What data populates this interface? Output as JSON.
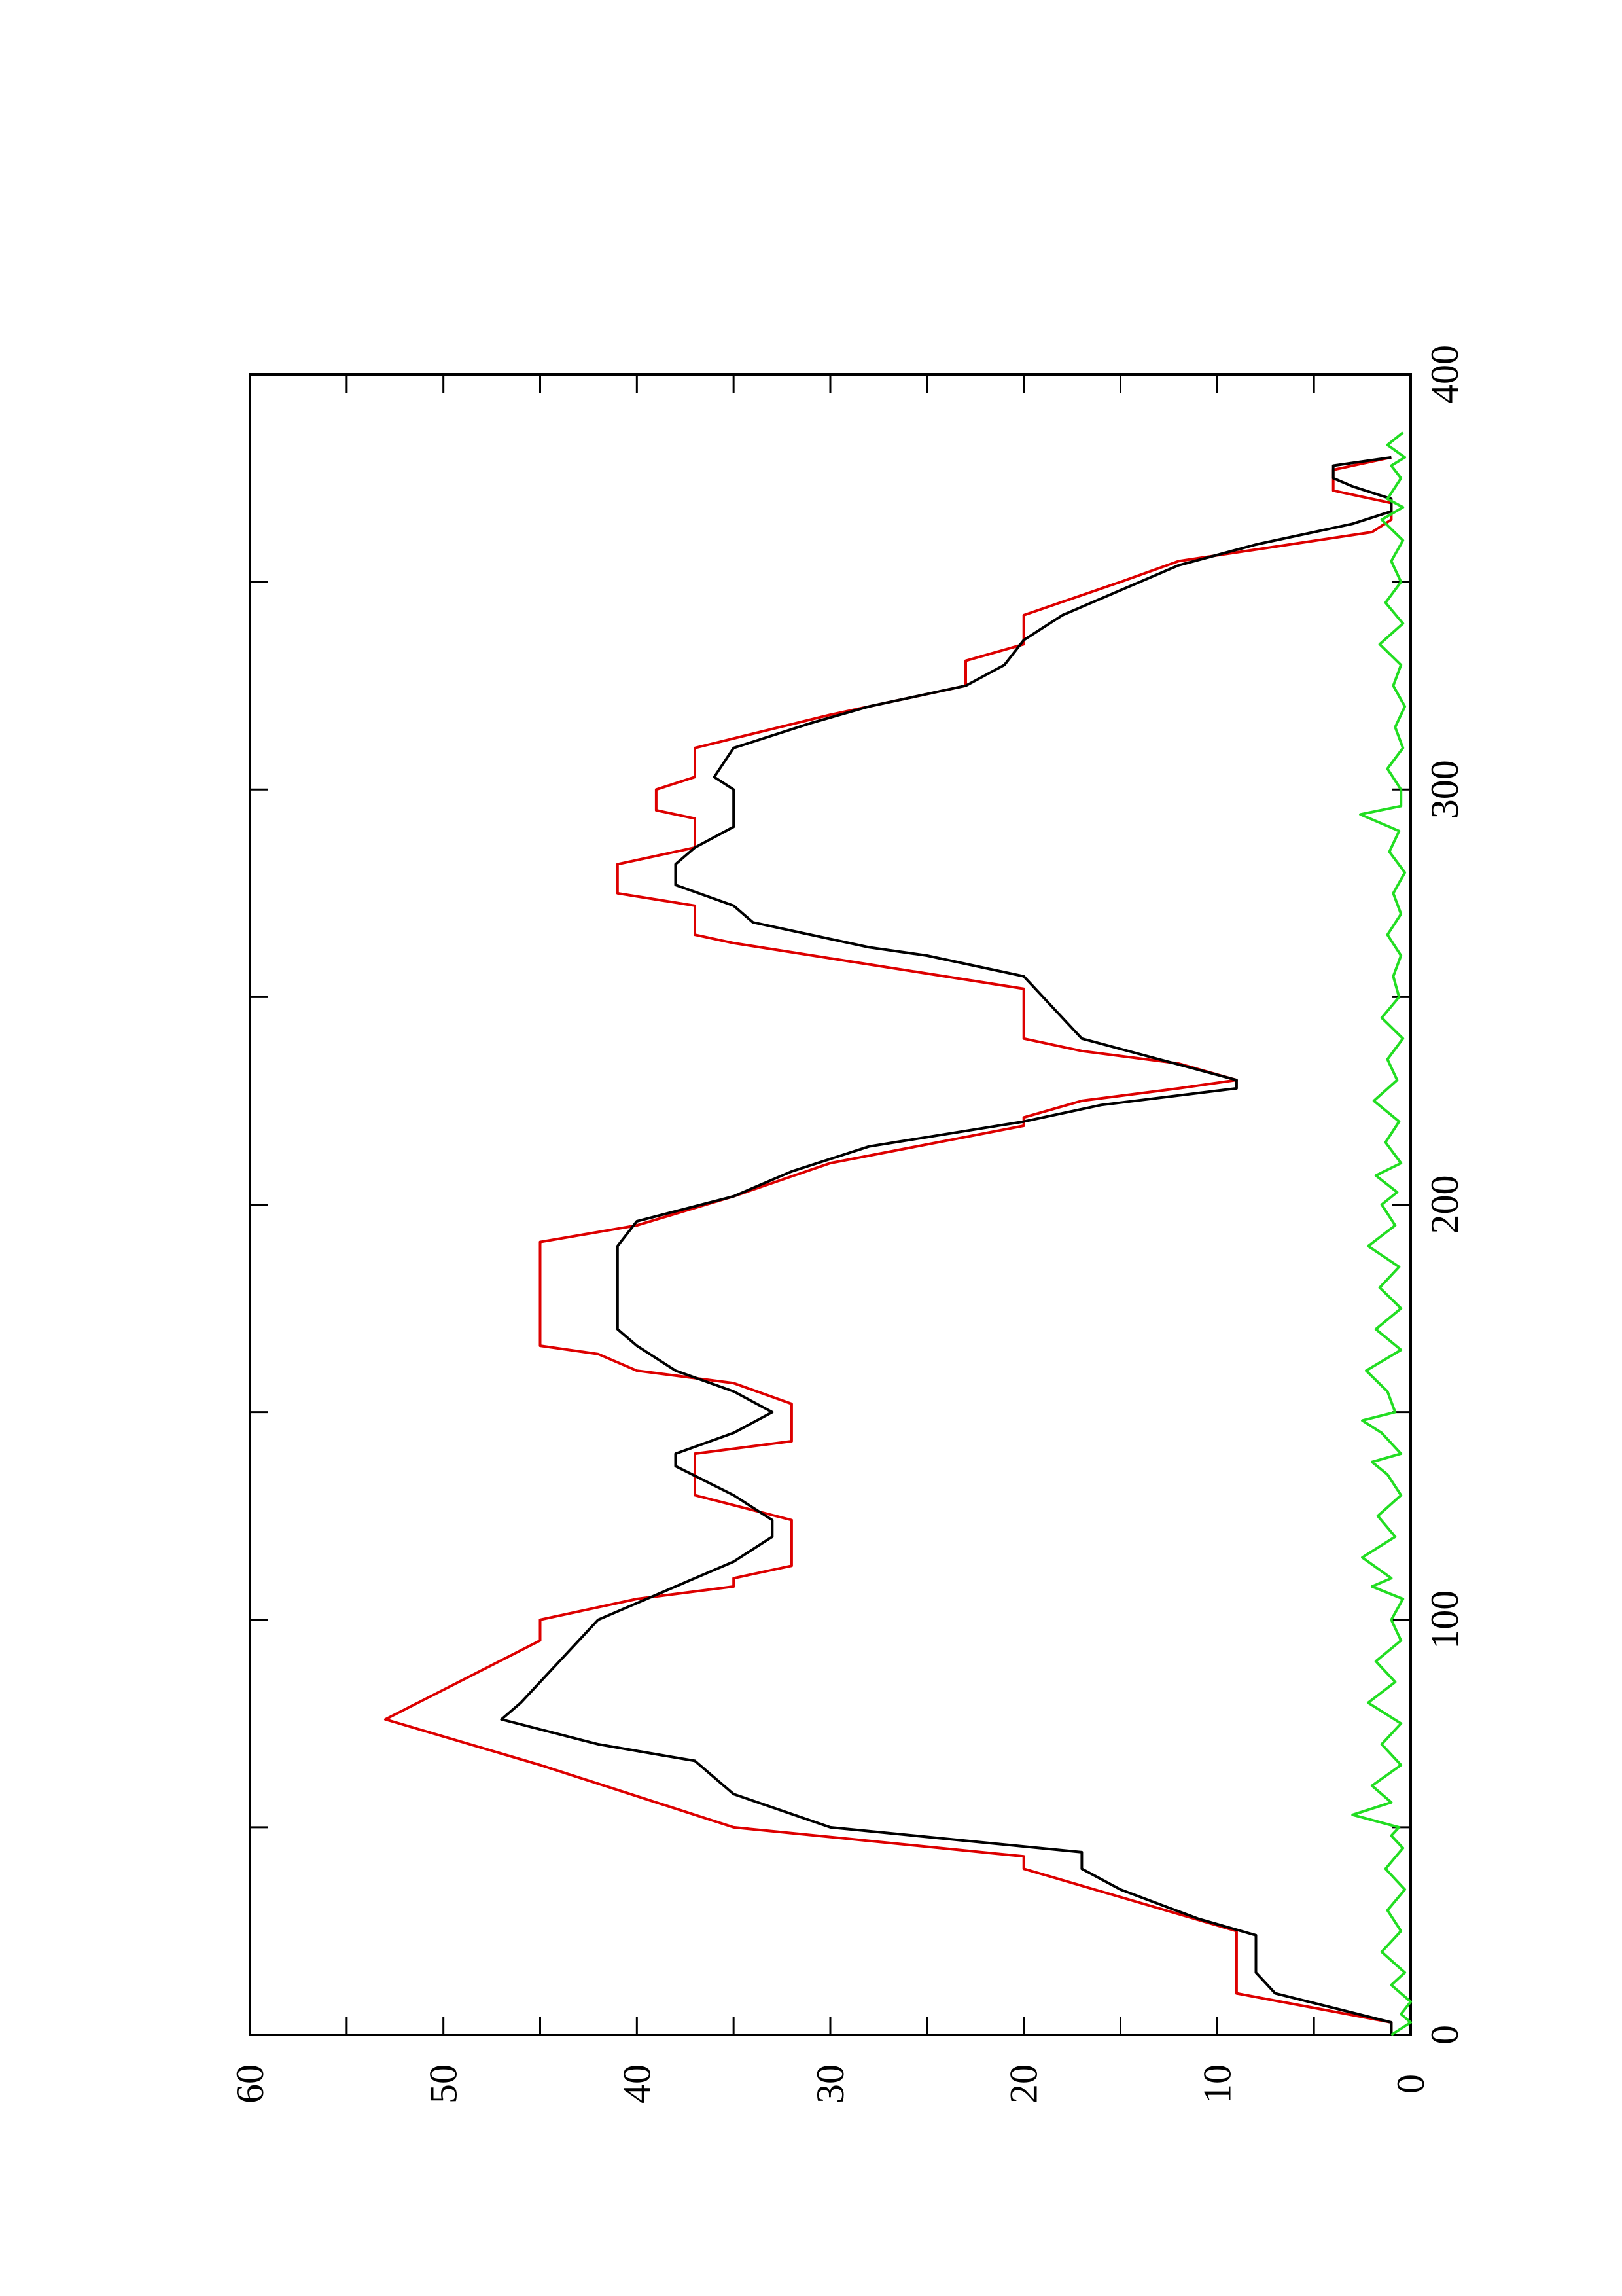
{
  "chart_data": {
    "type": "line",
    "orientation": "rotated 90 degrees counter-clockwise (x axis runs bottom-to-top on the page, y axis runs right-to-left)",
    "title": "",
    "xlabel": "",
    "ylabel": "",
    "xlim": [
      0,
      400
    ],
    "ylim": [
      0,
      60
    ],
    "x_ticks": [
      "0",
      "100",
      "200",
      "300",
      "400"
    ],
    "y_ticks": [
      "0",
      "10",
      "20",
      "30",
      "40",
      "50",
      "60"
    ],
    "grid": false,
    "legend": "none",
    "series": [
      {
        "color": "#dd0000",
        "style": "step",
        "points": [
          [
            0,
            1
          ],
          [
            3,
            1
          ],
          [
            10,
            9
          ],
          [
            25,
            9
          ],
          [
            40,
            20
          ],
          [
            43,
            20
          ],
          [
            50,
            35
          ],
          [
            65,
            45
          ],
          [
            76,
            53
          ],
          [
            95,
            45
          ],
          [
            100,
            45
          ],
          [
            105,
            40
          ],
          [
            108,
            35
          ],
          [
            110,
            35
          ],
          [
            113,
            32
          ],
          [
            124,
            32
          ],
          [
            130,
            37
          ],
          [
            140,
            37
          ],
          [
            143,
            32
          ],
          [
            152,
            32
          ],
          [
            157,
            35
          ],
          [
            160,
            40
          ],
          [
            164,
            42
          ],
          [
            166,
            45
          ],
          [
            171,
            45
          ],
          [
            191,
            45
          ],
          [
            195,
            40
          ],
          [
            202,
            35
          ],
          [
            210,
            30
          ],
          [
            219,
            20
          ],
          [
            221,
            20
          ],
          [
            225,
            17
          ],
          [
            228,
            12
          ],
          [
            230,
            9
          ],
          [
            234,
            12
          ],
          [
            237,
            17
          ],
          [
            240,
            20
          ],
          [
            246,
            20
          ],
          [
            252,
            20
          ],
          [
            263,
            35
          ],
          [
            265,
            37
          ],
          [
            272,
            37
          ],
          [
            275,
            41
          ],
          [
            282,
            41
          ],
          [
            286,
            37
          ],
          [
            293,
            37
          ],
          [
            295,
            39
          ],
          [
            300,
            39
          ],
          [
            303,
            37
          ],
          [
            310,
            37
          ],
          [
            318,
            30
          ],
          [
            325,
            23
          ],
          [
            331,
            23
          ],
          [
            335,
            20
          ],
          [
            342,
            20
          ],
          [
            350,
            15
          ],
          [
            355,
            12
          ],
          [
            362,
            2
          ],
          [
            365,
            1
          ],
          [
            369,
            1
          ],
          [
            372,
            4
          ],
          [
            377,
            4
          ],
          [
            380,
            1
          ]
        ]
      },
      {
        "color": "#000000",
        "style": "line",
        "points": [
          [
            0,
            1
          ],
          [
            3,
            1
          ],
          [
            10,
            7
          ],
          [
            15,
            8
          ],
          [
            24,
            8
          ],
          [
            28,
            11
          ],
          [
            35,
            15
          ],
          [
            40,
            17
          ],
          [
            44,
            17
          ],
          [
            50,
            30
          ],
          [
            58,
            35
          ],
          [
            66,
            37
          ],
          [
            70,
            42
          ],
          [
            76,
            47
          ],
          [
            80,
            46
          ],
          [
            85,
            45
          ],
          [
            95,
            43
          ],
          [
            100,
            42
          ],
          [
            104,
            40
          ],
          [
            108,
            38
          ],
          [
            110,
            37
          ],
          [
            114,
            35
          ],
          [
            120,
            33
          ],
          [
            124,
            33
          ],
          [
            130,
            35
          ],
          [
            137,
            38
          ],
          [
            140,
            38
          ],
          [
            145,
            35
          ],
          [
            150,
            33
          ],
          [
            155,
            35
          ],
          [
            160,
            38
          ],
          [
            166,
            40
          ],
          [
            170,
            41
          ],
          [
            178,
            41
          ],
          [
            185,
            41
          ],
          [
            190,
            41
          ],
          [
            196,
            40
          ],
          [
            202,
            35
          ],
          [
            208,
            32
          ],
          [
            214,
            28
          ],
          [
            220,
            20
          ],
          [
            224,
            16
          ],
          [
            228,
            9
          ],
          [
            230,
            9
          ],
          [
            235,
            13
          ],
          [
            240,
            17
          ],
          [
            245,
            18
          ],
          [
            250,
            19
          ],
          [
            255,
            20
          ],
          [
            260,
            25
          ],
          [
            262,
            28
          ],
          [
            268,
            34
          ],
          [
            272,
            35
          ],
          [
            277,
            38
          ],
          [
            282,
            38
          ],
          [
            286,
            37
          ],
          [
            291,
            35
          ],
          [
            300,
            35
          ],
          [
            303,
            36
          ],
          [
            310,
            35
          ],
          [
            316,
            31
          ],
          [
            320,
            28
          ],
          [
            325,
            23
          ],
          [
            330,
            21
          ],
          [
            336,
            20
          ],
          [
            342,
            18
          ],
          [
            350,
            14
          ],
          [
            354,
            12
          ],
          [
            359,
            8
          ],
          [
            364,
            3
          ],
          [
            367,
            1
          ],
          [
            370,
            1
          ],
          [
            373,
            3
          ],
          [
            375,
            4
          ],
          [
            378,
            4
          ],
          [
            380,
            1
          ]
        ]
      },
      {
        "color": "#22dd22",
        "style": "noise",
        "points": [
          [
            0,
            1
          ],
          [
            3,
            0
          ],
          [
            5,
            0.5
          ],
          [
            8,
            0
          ],
          [
            12,
            1
          ],
          [
            15,
            0.3
          ],
          [
            20,
            1.5
          ],
          [
            25,
            0.5
          ],
          [
            30,
            1.2
          ],
          [
            35,
            0.3
          ],
          [
            40,
            1.3
          ],
          [
            45,
            0.4
          ],
          [
            48,
            1
          ],
          [
            50,
            0.6
          ],
          [
            53,
            3
          ],
          [
            56,
            1
          ],
          [
            60,
            2
          ],
          [
            65,
            0.5
          ],
          [
            70,
            1.5
          ],
          [
            75,
            0.5
          ],
          [
            80,
            2.2
          ],
          [
            85,
            0.8
          ],
          [
            90,
            1.8
          ],
          [
            95,
            0.5
          ],
          [
            100,
            1
          ],
          [
            105,
            0.4
          ],
          [
            108,
            2
          ],
          [
            110,
            1
          ],
          [
            115,
            2.5
          ],
          [
            120,
            0.8
          ],
          [
            125,
            1.7
          ],
          [
            130,
            0.5
          ],
          [
            135,
            1.2
          ],
          [
            138,
            2
          ],
          [
            140,
            0.5
          ],
          [
            145,
            1.5
          ],
          [
            148,
            2.5
          ],
          [
            150,
            0.8
          ],
          [
            155,
            1.2
          ],
          [
            160,
            2.3
          ],
          [
            165,
            0.5
          ],
          [
            170,
            1.8
          ],
          [
            175,
            0.5
          ],
          [
            180,
            1.6
          ],
          [
            185,
            0.6
          ],
          [
            190,
            2.2
          ],
          [
            195,
            0.8
          ],
          [
            200,
            1.5
          ],
          [
            203,
            0.7
          ],
          [
            207,
            1.8
          ],
          [
            210,
            0.5
          ],
          [
            215,
            1.3
          ],
          [
            220,
            0.6
          ],
          [
            225,
            1.9
          ],
          [
            230,
            0.7
          ],
          [
            235,
            1.2
          ],
          [
            240,
            0.4
          ],
          [
            245,
            1.5
          ],
          [
            250,
            0.6
          ],
          [
            255,
            0.9
          ],
          [
            260,
            0.5
          ],
          [
            265,
            1.2
          ],
          [
            270,
            0.5
          ],
          [
            275,
            0.9
          ],
          [
            280,
            0.3
          ],
          [
            285,
            1.1
          ],
          [
            290,
            0.6
          ],
          [
            294,
            2.6
          ],
          [
            296,
            0.5
          ],
          [
            300,
            0.5
          ],
          [
            305,
            1.2
          ],
          [
            310,
            0.4
          ],
          [
            315,
            0.8
          ],
          [
            320,
            0.3
          ],
          [
            325,
            0.9
          ],
          [
            330,
            0.5
          ],
          [
            335,
            1.6
          ],
          [
            340,
            0.4
          ],
          [
            345,
            1.3
          ],
          [
            350,
            0.5
          ],
          [
            355,
            1
          ],
          [
            360,
            0.4
          ],
          [
            365,
            1.5
          ],
          [
            368,
            0.4
          ],
          [
            370,
            1.2
          ],
          [
            375,
            0.5
          ],
          [
            378,
            1
          ],
          [
            380,
            0.3
          ],
          [
            383,
            1.2
          ],
          [
            386,
            0.4
          ]
        ]
      }
    ]
  }
}
